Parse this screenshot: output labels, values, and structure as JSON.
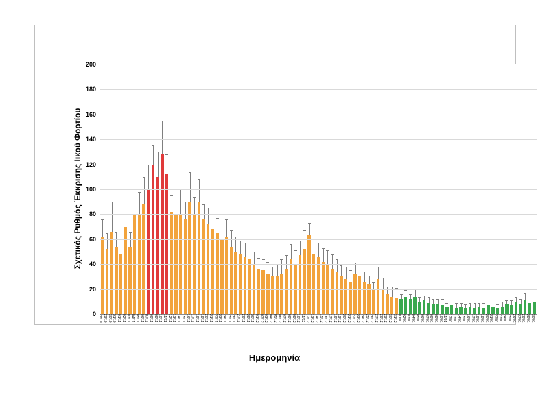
{
  "chart": {
    "type": "bar-with-error",
    "ylabel": "Σχετικός Ρυθμός Έκκρισης Ιικού Φορτίου",
    "xlabel": "Ημερομηνία",
    "ylabel_fontsize": 12,
    "xlabel_fontsize": 13,
    "label_fontweight": "bold",
    "ylim": [
      0,
      200
    ],
    "ytick_step": 20,
    "yticks": [
      0,
      20,
      40,
      60,
      80,
      100,
      120,
      140,
      160,
      180,
      200
    ],
    "tick_fontsize": 9,
    "xtick_fontsize": 5,
    "background_color": "#ffffff",
    "frame_border_color": "#bfbfbf",
    "plot_border_color": "#8c8c8c",
    "grid_color": "#d9d9d9",
    "error_bar_color": "#7f7f7f",
    "error_cap_width": 4,
    "colors": {
      "orange": "#f2a33c",
      "red": "#e03a3a",
      "green": "#39a84e"
    },
    "bar_gap_ratio": 0.35,
    "data": [
      {
        "v": 62,
        "e": 14,
        "c": "orange",
        "x": "28/10"
      },
      {
        "v": 52,
        "e": 13,
        "c": "orange",
        "x": "29/10"
      },
      {
        "v": 66,
        "e": 24,
        "c": "orange",
        "x": "30/10"
      },
      {
        "v": 54,
        "e": 12,
        "c": "orange",
        "x": "31/10"
      },
      {
        "v": 48,
        "e": 11,
        "c": "orange",
        "x": "01/11"
      },
      {
        "v": 70,
        "e": 20,
        "c": "orange",
        "x": "02/11"
      },
      {
        "v": 54,
        "e": 12,
        "c": "orange",
        "x": "03/11"
      },
      {
        "v": 80,
        "e": 17,
        "c": "orange",
        "x": "04/11"
      },
      {
        "v": 80,
        "e": 18,
        "c": "orange",
        "x": "05/11"
      },
      {
        "v": 88,
        "e": 22,
        "c": "orange",
        "x": "06/11"
      },
      {
        "v": 100,
        "e": 20,
        "c": "red",
        "x": "07/11"
      },
      {
        "v": 120,
        "e": 15,
        "c": "red",
        "x": "08/11"
      },
      {
        "v": 110,
        "e": 20,
        "c": "red",
        "x": "09/11"
      },
      {
        "v": 128,
        "e": 27,
        "c": "red",
        "x": "10/11"
      },
      {
        "v": 112,
        "e": 16,
        "c": "red",
        "x": "11/11"
      },
      {
        "v": 82,
        "e": 13,
        "c": "orange",
        "x": "12/11"
      },
      {
        "v": 80,
        "e": 20,
        "c": "orange",
        "x": "13/11"
      },
      {
        "v": 80,
        "e": 20,
        "c": "orange",
        "x": "14/11"
      },
      {
        "v": 76,
        "e": 14,
        "c": "orange",
        "x": "15/11"
      },
      {
        "v": 90,
        "e": 24,
        "c": "orange",
        "x": "16/11"
      },
      {
        "v": 80,
        "e": 14,
        "c": "orange",
        "x": "17/11"
      },
      {
        "v": 90,
        "e": 18,
        "c": "orange",
        "x": "18/11"
      },
      {
        "v": 76,
        "e": 12,
        "c": "orange",
        "x": "19/11"
      },
      {
        "v": 72,
        "e": 13,
        "c": "orange",
        "x": "20/11"
      },
      {
        "v": 68,
        "e": 12,
        "c": "orange",
        "x": "21/11"
      },
      {
        "v": 65,
        "e": 12,
        "c": "orange",
        "x": "22/11"
      },
      {
        "v": 60,
        "e": 11,
        "c": "orange",
        "x": "23/11"
      },
      {
        "v": 62,
        "e": 14,
        "c": "orange",
        "x": "24/11"
      },
      {
        "v": 54,
        "e": 13,
        "c": "orange",
        "x": "25/11"
      },
      {
        "v": 50,
        "e": 12,
        "c": "orange",
        "x": "26/11"
      },
      {
        "v": 48,
        "e": 11,
        "c": "orange",
        "x": "27/11"
      },
      {
        "v": 46,
        "e": 11,
        "c": "orange",
        "x": "28/11"
      },
      {
        "v": 44,
        "e": 11,
        "c": "orange",
        "x": "29/11"
      },
      {
        "v": 40,
        "e": 10,
        "c": "orange",
        "x": "30/11"
      },
      {
        "v": 36,
        "e": 9,
        "c": "orange",
        "x": "01/12"
      },
      {
        "v": 35,
        "e": 9,
        "c": "orange",
        "x": "02/12"
      },
      {
        "v": 32,
        "e": 10,
        "c": "orange",
        "x": "03/12"
      },
      {
        "v": 30,
        "e": 8,
        "c": "orange",
        "x": "04/12"
      },
      {
        "v": 30,
        "e": 10,
        "c": "orange",
        "x": "05/12"
      },
      {
        "v": 32,
        "e": 12,
        "c": "orange",
        "x": "06/12"
      },
      {
        "v": 36,
        "e": 11,
        "c": "orange",
        "x": "07/12"
      },
      {
        "v": 44,
        "e": 12,
        "c": "orange",
        "x": "08/12"
      },
      {
        "v": 40,
        "e": 11,
        "c": "orange",
        "x": "09/12"
      },
      {
        "v": 47,
        "e": 12,
        "c": "orange",
        "x": "10/12"
      },
      {
        "v": 52,
        "e": 15,
        "c": "orange",
        "x": "11/12"
      },
      {
        "v": 63,
        "e": 10,
        "c": "orange",
        "x": "12/12"
      },
      {
        "v": 48,
        "e": 12,
        "c": "orange",
        "x": "13/12"
      },
      {
        "v": 46,
        "e": 11,
        "c": "orange",
        "x": "14/12"
      },
      {
        "v": 42,
        "e": 11,
        "c": "orange",
        "x": "15/12"
      },
      {
        "v": 40,
        "e": 11,
        "c": "orange",
        "x": "16/12"
      },
      {
        "v": 36,
        "e": 12,
        "c": "orange",
        "x": "17/12"
      },
      {
        "v": 34,
        "e": 10,
        "c": "orange",
        "x": "18/12"
      },
      {
        "v": 30,
        "e": 9,
        "c": "orange",
        "x": "19/12"
      },
      {
        "v": 28,
        "e": 10,
        "c": "orange",
        "x": "20/12"
      },
      {
        "v": 26,
        "e": 9,
        "c": "orange",
        "x": "21/12"
      },
      {
        "v": 32,
        "e": 9,
        "c": "orange",
        "x": "22/12"
      },
      {
        "v": 30,
        "e": 10,
        "c": "orange",
        "x": "23/12"
      },
      {
        "v": 26,
        "e": 8,
        "c": "orange",
        "x": "24/12"
      },
      {
        "v": 24,
        "e": 7,
        "c": "orange",
        "x": "25/12"
      },
      {
        "v": 20,
        "e": 6,
        "c": "orange",
        "x": "26/12"
      },
      {
        "v": 28,
        "e": 10,
        "c": "orange",
        "x": "27/12"
      },
      {
        "v": 20,
        "e": 9,
        "c": "orange",
        "x": "28/12"
      },
      {
        "v": 16,
        "e": 6,
        "c": "orange",
        "x": "29/12"
      },
      {
        "v": 14,
        "e": 8,
        "c": "orange",
        "x": "30/12"
      },
      {
        "v": 13,
        "e": 8,
        "c": "orange",
        "x": "31/12"
      },
      {
        "v": 12,
        "e": 4,
        "c": "green",
        "x": "01/01"
      },
      {
        "v": 14,
        "e": 5,
        "c": "green",
        "x": "02/01"
      },
      {
        "v": 12,
        "e": 4,
        "c": "green",
        "x": "03/01"
      },
      {
        "v": 14,
        "e": 6,
        "c": "green",
        "x": "04/01"
      },
      {
        "v": 10,
        "e": 4,
        "c": "green",
        "x": "05/01"
      },
      {
        "v": 11,
        "e": 4,
        "c": "green",
        "x": "06/01"
      },
      {
        "v": 9,
        "e": 5,
        "c": "green",
        "x": "07/01"
      },
      {
        "v": 8,
        "e": 4,
        "c": "green",
        "x": "08/01"
      },
      {
        "v": 8,
        "e": 4,
        "c": "green",
        "x": "09/01"
      },
      {
        "v": 7,
        "e": 5,
        "c": "green",
        "x": "10/01"
      },
      {
        "v": 6,
        "e": 3,
        "c": "green",
        "x": "11/01"
      },
      {
        "v": 7,
        "e": 3,
        "c": "green",
        "x": "12/01"
      },
      {
        "v": 5,
        "e": 4,
        "c": "green",
        "x": "13/01"
      },
      {
        "v": 6,
        "e": 3,
        "c": "green",
        "x": "14/01"
      },
      {
        "v": 5,
        "e": 3,
        "c": "green",
        "x": "15/01"
      },
      {
        "v": 6,
        "e": 3,
        "c": "green",
        "x": "16/01"
      },
      {
        "v": 5,
        "e": 4,
        "c": "green",
        "x": "17/01"
      },
      {
        "v": 6,
        "e": 3,
        "c": "green",
        "x": "18/01"
      },
      {
        "v": 5,
        "e": 4,
        "c": "green",
        "x": "19/01"
      },
      {
        "v": 7,
        "e": 3,
        "c": "green",
        "x": "20/01"
      },
      {
        "v": 6,
        "e": 4,
        "c": "green",
        "x": "21/01"
      },
      {
        "v": 5,
        "e": 3,
        "c": "green",
        "x": "22/01"
      },
      {
        "v": 6,
        "e": 4,
        "c": "green",
        "x": "23/01"
      },
      {
        "v": 8,
        "e": 3,
        "c": "green",
        "x": "24/01"
      },
      {
        "v": 7,
        "e": 4,
        "c": "green",
        "x": "25/01"
      },
      {
        "v": 10,
        "e": 4,
        "c": "green",
        "x": "26/01"
      },
      {
        "v": 8,
        "e": 4,
        "c": "green",
        "x": "27/01"
      },
      {
        "v": 11,
        "e": 6,
        "c": "green",
        "x": "28/01"
      },
      {
        "v": 9,
        "e": 4,
        "c": "green",
        "x": "29/01"
      },
      {
        "v": 10,
        "e": 5,
        "c": "green",
        "x": "30/01"
      }
    ]
  }
}
